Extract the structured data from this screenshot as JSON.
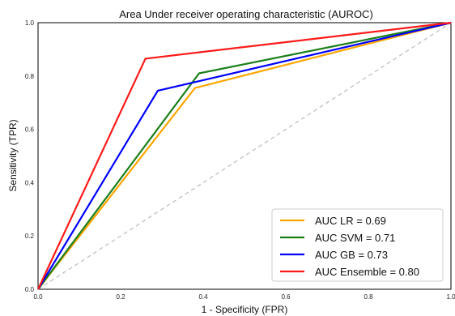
{
  "chart_data": {
    "type": "line",
    "title": "Area Under receiver operating characteristic (AUROC)",
    "xlabel": "1 - Specificity (FPR)",
    "ylabel": "Sensitivity (TPR)",
    "xlim": [
      0,
      1
    ],
    "ylim": [
      0,
      1
    ],
    "x_ticks": [
      "0.0",
      "0.2",
      "0.4",
      "0.6",
      "0.8",
      "1.0"
    ],
    "y_ticks": [
      "0.0",
      "0.2",
      "0.4",
      "0.6",
      "0.8",
      "1.0"
    ],
    "grid": false,
    "legend_position": "bottom-right",
    "series": [
      {
        "name": "AUC LR = 0.69",
        "color": "#FFA500",
        "x": [
          0,
          0.38,
          1
        ],
        "y": [
          0,
          0.755,
          1
        ]
      },
      {
        "name": "AUC SVM = 0.71",
        "color": "#1A7F1A",
        "x": [
          0,
          0.39,
          1
        ],
        "y": [
          0,
          0.81,
          1
        ]
      },
      {
        "name": "AUC GB = 0.73",
        "color": "#0000FF",
        "x": [
          0,
          0.29,
          1
        ],
        "y": [
          0,
          0.745,
          1
        ]
      },
      {
        "name": "AUC Ensemble = 0.80",
        "color": "#FF1A1A",
        "x": [
          0,
          0.26,
          1
        ],
        "y": [
          0,
          0.865,
          1
        ]
      }
    ],
    "reference_line": {
      "x": [
        0,
        1
      ],
      "y": [
        0,
        1
      ],
      "color": "#BBBBBB",
      "style": "dashed"
    }
  }
}
